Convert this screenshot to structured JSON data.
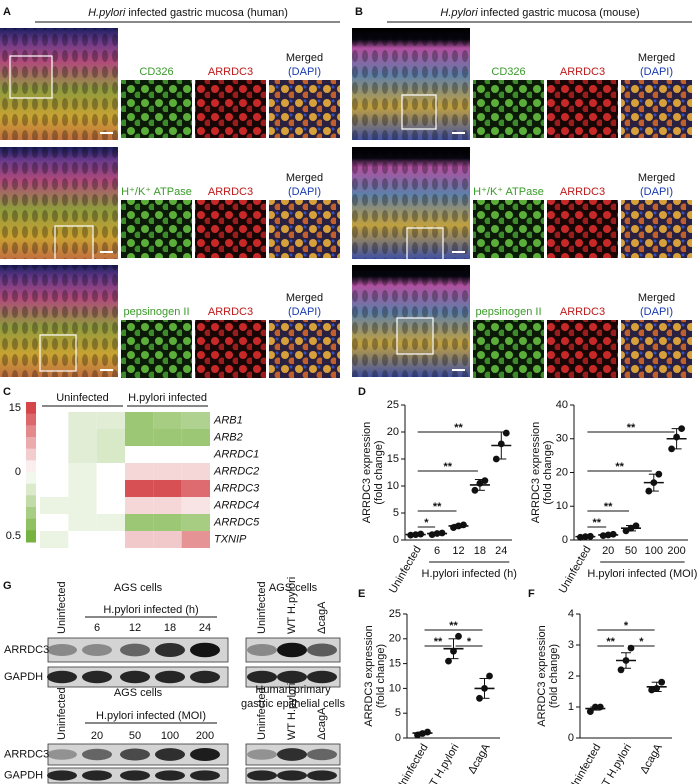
{
  "panel_a": {
    "letter": "A",
    "title_italic": "H.pylori",
    "title": "infected gastric mucosa (human)",
    "rows": [
      {
        "stain": "CD326",
        "target": "ARRDC3",
        "merged": "Merged",
        "counterstain": "(DAPI)"
      },
      {
        "stain": "H⁺/K⁺ ATPase",
        "target": "ARRDC3",
        "merged": "Merged",
        "counterstain": "(DAPI)"
      },
      {
        "stain": "pepsinogen II",
        "target": "ARRDC3",
        "merged": "Merged",
        "counterstain": "(DAPI)"
      }
    ]
  },
  "panel_b": {
    "letter": "B",
    "title_italic": "H.pylori",
    "title": "infected gastric mucosa (mouse)",
    "rows": [
      {
        "stain": "CD326",
        "target": "ARRDC3",
        "merged": "Merged",
        "counterstain": "(DAPI)"
      },
      {
        "stain": "H⁺/K⁺ ATPase",
        "target": "ARRDC3",
        "merged": "Merged",
        "counterstain": "(DAPI)"
      },
      {
        "stain": "pepsinogen II",
        "target": "ARRDC3",
        "merged": "Merged",
        "counterstain": "(DAPI)"
      }
    ]
  },
  "panel_c": {
    "letter": "C"
  },
  "panel_d": {
    "letter": "D"
  },
  "panel_e": {
    "letter": "E"
  },
  "panel_f": {
    "letter": "F"
  },
  "panel_g": {
    "letter": "G",
    "blots": [
      {
        "cell_type": [
          "AGS cells"
        ],
        "lanes": [
          "Uninfected",
          "6",
          "12",
          "18",
          "24"
        ],
        "group_label": "H.pylori infected (h)",
        "proteins": [
          "ARRDC3",
          "GAPDH"
        ]
      },
      {
        "cell_type": [
          "AGS cells"
        ],
        "lanes": [
          "Uninfected",
          "WT H.pylori",
          "ΔcagA"
        ]
      },
      {
        "cell_type": [
          "AGS cells"
        ],
        "lanes": [
          "Uninfected",
          "20",
          "50",
          "100",
          "200"
        ],
        "group_label": "H.pylori infected (MOI)",
        "proteins": [
          "ARRDC3",
          "GAPDH"
        ]
      },
      {
        "cell_type": [
          "Human primary",
          "gastric epithelial cells"
        ],
        "lanes": [
          "Uninfected",
          "WT H.pylori",
          "ΔcagA"
        ]
      }
    ]
  },
  "chart_data": [
    {
      "type": "heatmap",
      "groups": [
        "Uninfected",
        "H.pylori infected"
      ],
      "rows": [
        "ARB1",
        "ARB2",
        "ARRDC1",
        "ARRDC2",
        "ARRDC3",
        "ARRDC4",
        "ARRDC5",
        "TXNIP"
      ],
      "values": [
        [
          0,
          -3,
          -3,
          -10,
          -9,
          -8
        ],
        [
          0,
          -3,
          -4,
          -10,
          -10,
          -10
        ],
        [
          0,
          -3,
          -4,
          0,
          0,
          0
        ],
        [
          0,
          -2,
          0,
          3,
          3,
          3
        ],
        [
          0,
          -2,
          0,
          13,
          13,
          11
        ],
        [
          -2,
          -2,
          0,
          3,
          3,
          2
        ],
        [
          0,
          -2,
          -2,
          -10,
          -10,
          -9
        ],
        [
          -2,
          0,
          0,
          4,
          4,
          8
        ]
      ],
      "clim": [
        -15,
        15
      ],
      "colors": [
        "#6aab2e",
        "#ffffff",
        "#d0353a"
      ],
      "colorbar_labels": [
        "15",
        "0",
        "0.5"
      ]
    },
    {
      "type": "dot",
      "ylabel": [
        "ARRDC3 expression",
        "(fold change)"
      ],
      "categories": [
        "Uninfected",
        "6",
        "12",
        "18",
        "24"
      ],
      "xlabel": "H.pylori infected (h)",
      "ylim": [
        0,
        25
      ],
      "yticks": [
        0,
        5,
        10,
        15,
        20,
        25
      ],
      "points": [
        [
          0.9,
          1,
          1.1
        ],
        [
          1,
          1.2,
          1.3
        ],
        [
          2.3,
          2.6,
          2.8
        ],
        [
          9.2,
          10.5,
          11
        ],
        [
          15,
          17.8,
          19.8
        ]
      ],
      "means": [
        1,
        1.2,
        2.6,
        10.2,
        17.5
      ],
      "errors": [
        0.1,
        0.2,
        0.3,
        1,
        2.5
      ],
      "color": "#111111",
      "significance": [
        {
          "pair": [
            0,
            1
          ],
          "label": "*"
        },
        {
          "pair": [
            0,
            2
          ],
          "label": "**"
        },
        {
          "pair": [
            0,
            3
          ],
          "label": "**"
        },
        {
          "pair": [
            0,
            4
          ],
          "label": "**"
        }
      ]
    },
    {
      "type": "dot",
      "ylabel": [
        "ARRDC3 expression",
        "(fold change)"
      ],
      "categories": [
        "Uninfected",
        "20",
        "50",
        "100",
        "200"
      ],
      "xlabel": "H.pylori infected (MOI)",
      "ylim": [
        0,
        40
      ],
      "yticks": [
        0,
        10,
        20,
        30,
        40
      ],
      "points": [
        [
          0.8,
          1,
          1.1
        ],
        [
          1.3,
          1.5,
          1.7
        ],
        [
          2.7,
          3.5,
          4.2
        ],
        [
          14.5,
          17,
          19.5
        ],
        [
          27,
          30.5,
          33
        ]
      ],
      "means": [
        1,
        1.5,
        3.5,
        17,
        30
      ],
      "errors": [
        0.2,
        0.3,
        0.8,
        2.5,
        3
      ],
      "color": "#111111",
      "significance": [
        {
          "pair": [
            0,
            1
          ],
          "label": "**"
        },
        {
          "pair": [
            0,
            2
          ],
          "label": "**"
        },
        {
          "pair": [
            0,
            3
          ],
          "label": "**"
        },
        {
          "pair": [
            0,
            4
          ],
          "label": "**"
        }
      ]
    },
    {
      "type": "dot",
      "ylabel": [
        "ARRDC3 expression",
        "(fold change)"
      ],
      "categories": [
        "Uninfected",
        "WT H.pylori",
        "ΔcagA"
      ],
      "ylim": [
        0,
        25
      ],
      "yticks": [
        0,
        5,
        10,
        15,
        20,
        25
      ],
      "points": [
        [
          0.6,
          0.9,
          1.2
        ],
        [
          15.5,
          17.5,
          20.5
        ],
        [
          8,
          10,
          12.5
        ]
      ],
      "means": [
        1,
        18,
        10
      ],
      "errors": [
        0.2,
        2,
        2
      ],
      "color": "#111111",
      "significance": [
        {
          "pair": [
            0,
            1
          ],
          "label": "**"
        },
        {
          "pair": [
            1,
            2
          ],
          "label": "*"
        },
        {
          "pair": [
            0,
            2
          ],
          "label": "**"
        }
      ]
    },
    {
      "type": "dot",
      "ylabel": [
        "ARRDC3 expression",
        "(fold change)"
      ],
      "categories": [
        "Uninfected",
        "WT H.pylori",
        "ΔcagA"
      ],
      "ylim": [
        0,
        4
      ],
      "yticks": [
        0,
        1,
        2,
        3,
        4
      ],
      "points": [
        [
          0.85,
          1,
          1
        ],
        [
          2.2,
          2.5,
          2.9
        ],
        [
          1.55,
          1.6,
          1.8
        ]
      ],
      "means": [
        0.95,
        2.5,
        1.65
      ],
      "errors": [
        0.05,
        0.25,
        0.15
      ],
      "color": "#111111",
      "significance": [
        {
          "pair": [
            0,
            1
          ],
          "label": "**"
        },
        {
          "pair": [
            1,
            2
          ],
          "label": "*"
        },
        {
          "pair": [
            0,
            2
          ],
          "label": "*"
        }
      ]
    }
  ]
}
